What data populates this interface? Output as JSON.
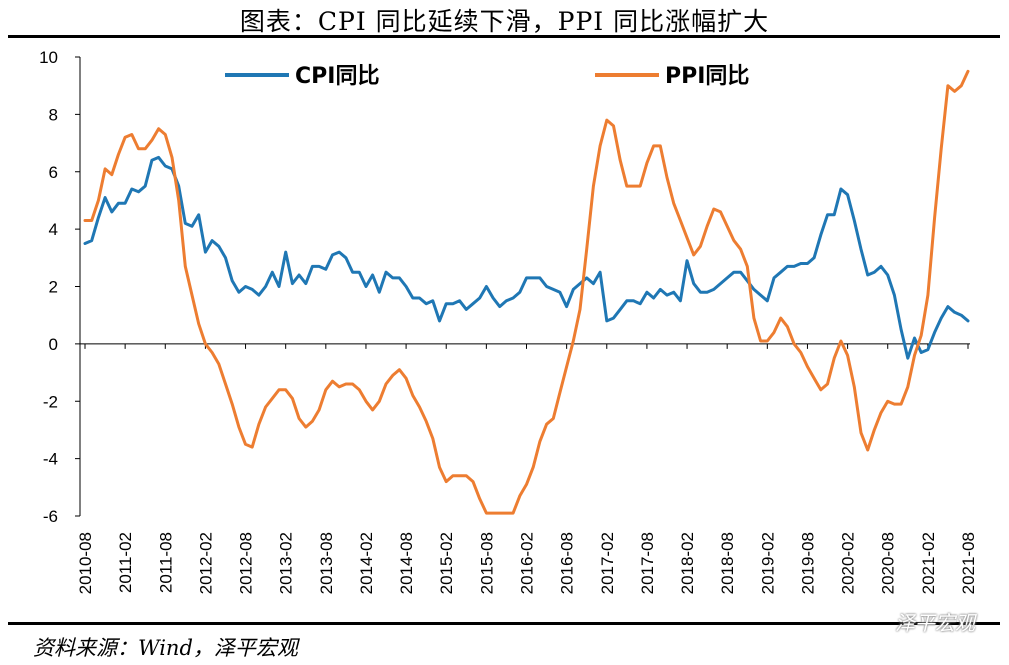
{
  "title": "图表：CPI 同比延续下滑，PPI 同比涨幅扩大",
  "source": "资料来源：Wind，泽平宏观",
  "watermark": "泽平宏观",
  "colors": {
    "cpi": "#1f77b4",
    "ppi": "#ed7d31"
  },
  "chart_data": {
    "type": "line",
    "title": "",
    "xlabel": "",
    "ylabel": "",
    "ylim": [
      -6,
      10
    ],
    "yticks": [
      -6,
      -4,
      -2,
      0,
      2,
      4,
      6,
      8,
      10
    ],
    "x": [
      "2010-08",
      "2010-09",
      "2010-10",
      "2010-11",
      "2010-12",
      "2011-01",
      "2011-02",
      "2011-03",
      "2011-04",
      "2011-05",
      "2011-06",
      "2011-07",
      "2011-08",
      "2011-09",
      "2011-10",
      "2011-11",
      "2011-12",
      "2012-01",
      "2012-02",
      "2012-03",
      "2012-04",
      "2012-05",
      "2012-06",
      "2012-07",
      "2012-08",
      "2012-09",
      "2012-10",
      "2012-11",
      "2012-12",
      "2013-01",
      "2013-02",
      "2013-03",
      "2013-04",
      "2013-05",
      "2013-06",
      "2013-07",
      "2013-08",
      "2013-09",
      "2013-10",
      "2013-11",
      "2013-12",
      "2014-01",
      "2014-02",
      "2014-03",
      "2014-04",
      "2014-05",
      "2014-06",
      "2014-07",
      "2014-08",
      "2014-09",
      "2014-10",
      "2014-11",
      "2014-12",
      "2015-01",
      "2015-02",
      "2015-03",
      "2015-04",
      "2015-05",
      "2015-06",
      "2015-07",
      "2015-08",
      "2015-09",
      "2015-10",
      "2015-11",
      "2015-12",
      "2016-01",
      "2016-02",
      "2016-03",
      "2016-04",
      "2016-05",
      "2016-06",
      "2016-07",
      "2016-08",
      "2016-09",
      "2016-10",
      "2016-11",
      "2016-12",
      "2017-01",
      "2017-02",
      "2017-03",
      "2017-04",
      "2017-05",
      "2017-06",
      "2017-07",
      "2017-08",
      "2017-09",
      "2017-10",
      "2017-11",
      "2017-12",
      "2018-01",
      "2018-02",
      "2018-03",
      "2018-04",
      "2018-05",
      "2018-06",
      "2018-07",
      "2018-08",
      "2018-09",
      "2018-10",
      "2018-11",
      "2018-12",
      "2019-01",
      "2019-02",
      "2019-03",
      "2019-04",
      "2019-05",
      "2019-06",
      "2019-07",
      "2019-08",
      "2019-09",
      "2019-10",
      "2019-11",
      "2019-12",
      "2020-01",
      "2020-02",
      "2020-03",
      "2020-04",
      "2020-05",
      "2020-06",
      "2020-07",
      "2020-08",
      "2020-09",
      "2020-10",
      "2020-11",
      "2020-12",
      "2021-01",
      "2021-02",
      "2021-03",
      "2021-04",
      "2021-05",
      "2021-06",
      "2021-07",
      "2021-08"
    ],
    "xticks": [
      "2010-08",
      "2011-02",
      "2011-08",
      "2012-02",
      "2012-08",
      "2013-02",
      "2013-08",
      "2014-02",
      "2014-08",
      "2015-02",
      "2015-08",
      "2016-02",
      "2016-08",
      "2017-02",
      "2017-08",
      "2018-02",
      "2018-08",
      "2019-02",
      "2019-08",
      "2020-02",
      "2020-08",
      "2021-02",
      "2021-08"
    ],
    "series": [
      {
        "name": "CPI同比",
        "color": "#1f77b4",
        "values": [
          3.5,
          3.6,
          4.4,
          5.1,
          4.6,
          4.9,
          4.9,
          5.4,
          5.3,
          5.5,
          6.4,
          6.5,
          6.2,
          6.1,
          5.5,
          4.2,
          4.1,
          4.5,
          3.2,
          3.6,
          3.4,
          3.0,
          2.2,
          1.8,
          2.0,
          1.9,
          1.7,
          2.0,
          2.5,
          2.0,
          3.2,
          2.1,
          2.4,
          2.1,
          2.7,
          2.7,
          2.6,
          3.1,
          3.2,
          3.0,
          2.5,
          2.5,
          2.0,
          2.4,
          1.8,
          2.5,
          2.3,
          2.3,
          2.0,
          1.6,
          1.6,
          1.4,
          1.5,
          0.8,
          1.4,
          1.4,
          1.5,
          1.2,
          1.4,
          1.6,
          2.0,
          1.6,
          1.3,
          1.5,
          1.6,
          1.8,
          2.3,
          2.3,
          2.3,
          2.0,
          1.9,
          1.8,
          1.3,
          1.9,
          2.1,
          2.3,
          2.1,
          2.5,
          0.8,
          0.9,
          1.2,
          1.5,
          1.5,
          1.4,
          1.8,
          1.6,
          1.9,
          1.7,
          1.8,
          1.5,
          2.9,
          2.1,
          1.8,
          1.8,
          1.9,
          2.1,
          2.3,
          2.5,
          2.5,
          2.2,
          1.9,
          1.7,
          1.5,
          2.3,
          2.5,
          2.7,
          2.7,
          2.8,
          2.8,
          3.0,
          3.8,
          4.5,
          4.5,
          5.4,
          5.2,
          4.3,
          3.3,
          2.4,
          2.5,
          2.7,
          2.4,
          1.7,
          0.5,
          -0.5,
          0.2,
          -0.3,
          -0.2,
          0.4,
          0.9,
          1.3,
          1.1,
          1.0,
          0.8
        ]
      },
      {
        "name": "PPI同比",
        "color": "#ed7d31",
        "values": [
          4.3,
          4.3,
          5.0,
          6.1,
          5.9,
          6.6,
          7.2,
          7.3,
          6.8,
          6.8,
          7.1,
          7.5,
          7.3,
          6.5,
          5.0,
          2.7,
          1.7,
          0.7,
          0.0,
          -0.3,
          -0.7,
          -1.4,
          -2.1,
          -2.9,
          -3.5,
          -3.6,
          -2.8,
          -2.2,
          -1.9,
          -1.6,
          -1.6,
          -1.9,
          -2.6,
          -2.9,
          -2.7,
          -2.3,
          -1.6,
          -1.3,
          -1.5,
          -1.4,
          -1.4,
          -1.6,
          -2.0,
          -2.3,
          -2.0,
          -1.4,
          -1.1,
          -0.9,
          -1.2,
          -1.8,
          -2.2,
          -2.7,
          -3.3,
          -4.3,
          -4.8,
          -4.6,
          -4.6,
          -4.6,
          -4.8,
          -5.4,
          -5.9,
          -5.9,
          -5.9,
          -5.9,
          -5.9,
          -5.3,
          -4.9,
          -4.3,
          -3.4,
          -2.8,
          -2.6,
          -1.7,
          -0.8,
          0.1,
          1.2,
          3.3,
          5.5,
          6.9,
          7.8,
          7.6,
          6.4,
          5.5,
          5.5,
          5.5,
          6.3,
          6.9,
          6.9,
          5.8,
          4.9,
          4.3,
          3.7,
          3.1,
          3.4,
          4.1,
          4.7,
          4.6,
          4.1,
          3.6,
          3.3,
          2.7,
          0.9,
          0.1,
          0.1,
          0.4,
          0.9,
          0.6,
          0.0,
          -0.3,
          -0.8,
          -1.2,
          -1.6,
          -1.4,
          -0.5,
          0.1,
          -0.4,
          -1.5,
          -3.1,
          -3.7,
          -3.0,
          -2.4,
          -2.0,
          -2.1,
          -2.1,
          -1.5,
          -0.4,
          0.3,
          1.7,
          4.4,
          6.8,
          9.0,
          8.8,
          9.0,
          9.5
        ]
      }
    ],
    "legend": {
      "placement": "top",
      "entries": [
        "CPI同比",
        "PPI同比"
      ]
    },
    "grid": false
  }
}
